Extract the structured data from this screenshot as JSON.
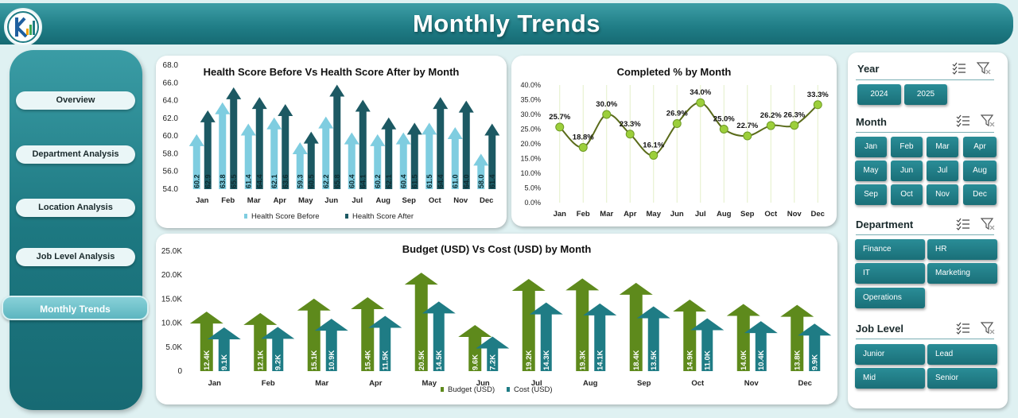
{
  "header": {
    "title": "Monthly Trends"
  },
  "nav": {
    "items": [
      {
        "label": "Overview"
      },
      {
        "label": "Department Analysis"
      },
      {
        "label": "Location Analysis"
      },
      {
        "label": "Job Level Analysis"
      },
      {
        "label": "Monthly Trends"
      }
    ],
    "active": "Monthly Trends"
  },
  "filters": {
    "year": {
      "title": "Year",
      "options": [
        "2024",
        "2025"
      ]
    },
    "month": {
      "title": "Month",
      "options": [
        "Jan",
        "Feb",
        "Mar",
        "Apr",
        "May",
        "Jun",
        "Jul",
        "Aug",
        "Sep",
        "Oct",
        "Nov",
        "Dec"
      ]
    },
    "department": {
      "title": "Department",
      "options": [
        "Finance",
        "HR",
        "IT",
        "Marketing",
        "Operations"
      ]
    },
    "job_level": {
      "title": "Job Level",
      "options": [
        "Junior",
        "Lead",
        "Mid",
        "Senior"
      ]
    }
  },
  "colors": {
    "header": "#1f7c85",
    "health_before": "#7fcde0",
    "health_after": "#1c5963",
    "completed_line": "#5a6b1a",
    "completed_point": "#9ccf3b",
    "budget": "#5e8a1c",
    "cost": "#1f7c85"
  },
  "chart_data": [
    {
      "type": "bar",
      "title": "Health Score Before Vs Health Score After by Month",
      "categories": [
        "Jan",
        "Feb",
        "Mar",
        "Apr",
        "May",
        "Jun",
        "Jul",
        "Aug",
        "Sep",
        "Oct",
        "Nov",
        "Dec"
      ],
      "series": [
        {
          "name": "Health Score Before",
          "values": [
            60.2,
            63.8,
            61.4,
            62.1,
            59.3,
            62.2,
            60.4,
            60.2,
            60.4,
            61.5,
            61.0,
            58.0
          ]
        },
        {
          "name": "Health Score After",
          "values": [
            62.9,
            65.5,
            64.4,
            63.6,
            60.5,
            65.8,
            64.1,
            62.1,
            61.5,
            64.4,
            64.0,
            61.4
          ]
        }
      ],
      "ylim": [
        54.0,
        68.0
      ],
      "yticks": [
        "54.0",
        "56.0",
        "58.0",
        "60.0",
        "62.0",
        "64.0",
        "66.0",
        "68.0"
      ],
      "legend": "bottom"
    },
    {
      "type": "line",
      "title": "Completed % by Month",
      "categories": [
        "Jan",
        "Feb",
        "Mar",
        "Apr",
        "May",
        "Jun",
        "Jul",
        "Aug",
        "Sep",
        "Oct",
        "Nov",
        "Dec"
      ],
      "values": [
        25.7,
        18.8,
        30.0,
        23.3,
        16.1,
        26.9,
        34.0,
        25.0,
        22.7,
        26.2,
        26.3,
        33.3
      ],
      "labels": [
        "25.7%",
        "18.8%",
        "30.0%",
        "23.3%",
        "16.1%",
        "26.9%",
        "34.0%",
        "25.0%",
        "22.7%",
        "26.2%",
        "26.3%",
        "33.3%"
      ],
      "ylim": [
        0,
        40
      ],
      "yticks": [
        "0.0%",
        "5.0%",
        "10.0%",
        "15.0%",
        "20.0%",
        "25.0%",
        "30.0%",
        "35.0%",
        "40.0%"
      ]
    },
    {
      "type": "bar",
      "title": "Budget (USD) Vs Cost (USD) by Month",
      "categories": [
        "Jan",
        "Feb",
        "Mar",
        "Apr",
        "May",
        "Jun",
        "Jul",
        "Aug",
        "Sep",
        "Oct",
        "Nov",
        "Dec"
      ],
      "series": [
        {
          "name": "Budget (USD)",
          "values": [
            12400,
            12100,
            15100,
            15400,
            20500,
            9600,
            19200,
            19300,
            18400,
            14900,
            14000,
            13800
          ],
          "labels": [
            "12.4K",
            "12.1K",
            "15.1K",
            "15.4K",
            "20.5K",
            "9.6K",
            "19.2K",
            "19.3K",
            "18.4K",
            "14.9K",
            "14.0K",
            "13.8K"
          ]
        },
        {
          "name": "Cost (USD)",
          "values": [
            9100,
            9200,
            10900,
            11500,
            14500,
            7200,
            14300,
            14100,
            13500,
            11000,
            10400,
            9900
          ],
          "labels": [
            "9.1K",
            "9.2K",
            "10.9K",
            "11.5K",
            "14.5K",
            "7.2K",
            "14.3K",
            "14.1K",
            "13.5K",
            "11.0K",
            "10.4K",
            "9.9K"
          ]
        }
      ],
      "ylim": [
        0,
        25000
      ],
      "yticks": [
        "0",
        "5.0K",
        "10.0K",
        "15.0K",
        "20.0K",
        "25.0K"
      ],
      "legend": "bottom"
    }
  ]
}
